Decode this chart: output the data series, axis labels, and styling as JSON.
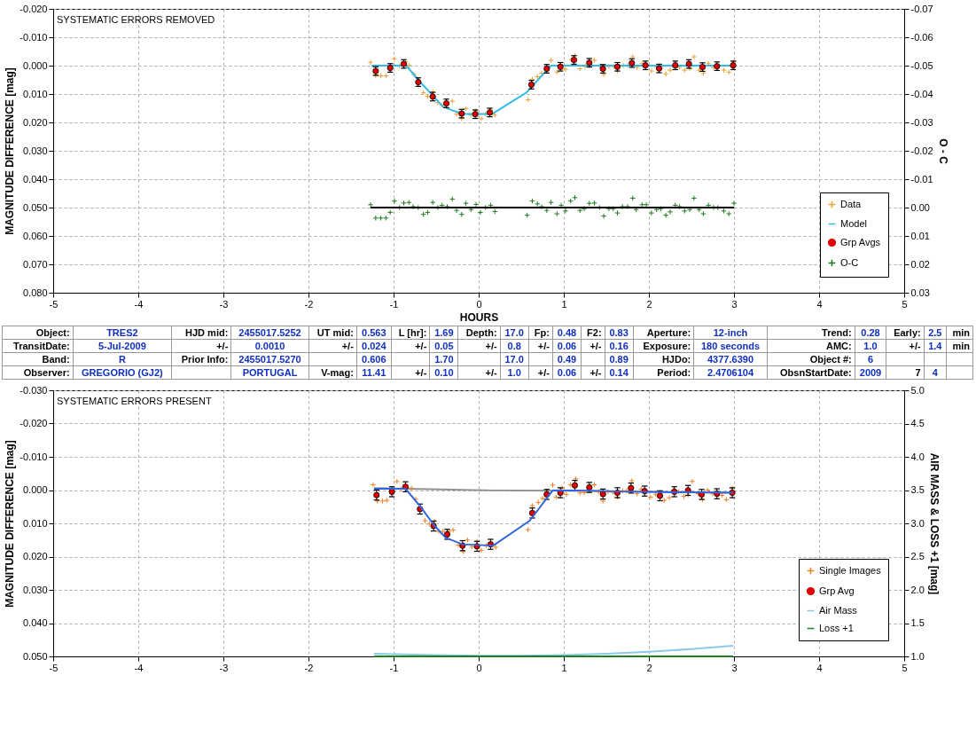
{
  "chart_data": [
    {
      "type": "scatter",
      "title": "SYSTEMATIC ERRORS REMOVED",
      "xlabel": "HOURS",
      "ylabel": "MAGNITUDE DIFFERENCE [mag]",
      "y2label": "O - C",
      "xlim": [
        -5,
        5
      ],
      "xticks": [
        -5,
        -4,
        -3,
        -2,
        -1,
        0,
        1,
        2,
        3,
        4,
        5
      ],
      "ylim": [
        0.08,
        -0.02
      ],
      "yticks": [
        {
          "value": -0.02,
          "label": "-0.020"
        },
        {
          "value": -0.01,
          "label": "-0.010"
        },
        {
          "value": 0,
          "label": "0.000"
        },
        {
          "value": 0.01,
          "label": "0.010"
        },
        {
          "value": 0.02,
          "label": "0.020"
        },
        {
          "value": 0.03,
          "label": "0.030"
        },
        {
          "value": 0.04,
          "label": "0.040"
        },
        {
          "value": 0.05,
          "label": "0.050"
        },
        {
          "value": 0.06,
          "label": "0.060"
        },
        {
          "value": 0.07,
          "label": "0.070"
        },
        {
          "value": 0.08,
          "label": "0.080"
        }
      ],
      "y2lim": [
        0.03,
        -0.07
      ],
      "y2ticks": [
        {
          "value": -0.07,
          "label": "-0.07"
        },
        {
          "value": -0.06,
          "label": "-0.06"
        },
        {
          "value": -0.05,
          "label": "-0.05"
        },
        {
          "value": -0.04,
          "label": "-0.04"
        },
        {
          "value": -0.03,
          "label": "-0.03"
        },
        {
          "value": -0.02,
          "label": "-0.02"
        },
        {
          "value": -0.01,
          "label": "-0.01"
        },
        {
          "value": 0,
          "label": "0.00"
        },
        {
          "value": 0.01,
          "label": "0.01"
        },
        {
          "value": 0.02,
          "label": "0.02"
        },
        {
          "value": 0.03,
          "label": "0.03"
        }
      ],
      "grid": true,
      "legend": "bottom right",
      "series": [
        {
          "name": "Data",
          "type": "scatter",
          "marker": "cross",
          "color": "#f0a030",
          "x": [
            -1.27,
            -1.21,
            -1.15,
            -1.09,
            -0.99,
            -0.93,
            -0.86,
            -0.82,
            -0.76,
            -0.65,
            -0.6,
            -0.54,
            -0.48,
            -0.43,
            -0.37,
            -0.31,
            -0.26,
            -0.2,
            -0.15,
            -0.09,
            -0.03,
            0.03,
            0.08,
            0.14,
            0.19,
            0.58,
            0.63,
            0.69,
            0.74,
            0.85,
            0.92,
            0.98,
            1.02,
            1.09,
            1.13,
            1.19,
            1.25,
            1.36,
            1.42,
            1.47,
            1.53,
            1.59,
            1.63,
            1.7,
            1.75,
            1.81,
            1.86,
            1.92,
            2.03,
            2.09,
            2.14,
            2.2,
            2.25,
            2.36,
            2.42,
            2.48,
            2.53,
            2.59,
            2.64,
            2.7,
            2.76,
            2.81,
            2.88,
            2.94,
            3.0
          ],
          "values": [
            -0.0012,
            0.0036,
            0.0036,
            0.0036,
            -0.0024,
            0.0001,
            -0.0014,
            -0.0001,
            0.0031,
            0.0095,
            0.0108,
            0.0092,
            0.013,
            0.0139,
            0.0135,
            0.0125,
            0.0171,
            0.0187,
            0.0151,
            0.0174,
            0.0159,
            0.0187,
            0.0171,
            0.0157,
            0.0174,
            0.012,
            0.0048,
            0.0039,
            0.0027,
            -0.0019,
            0.0023,
            0.0009,
            0.0013,
            -0.0021,
            -0.0036,
            0.0011,
            0.0003,
            -0.0019,
            0.0001,
            0.0031,
            0.0003,
            0.0003,
            0.0019,
            -0.0001,
            -0.0001,
            -0.0031,
            0.0006,
            -0.0007,
            0.0019,
            0.0006,
            0.0009,
            0.0029,
            0.0016,
            0.0006,
            0.0016,
            0.0011,
            -0.0031,
            0.0016,
            0.0026,
            -0.0007,
            0.0006,
            0.0006,
            0.0016,
            0.0023,
            -0.0014
          ]
        },
        {
          "name": "Model",
          "type": "line",
          "color": "#33bbe8",
          "x": [
            -1.26,
            -0.85,
            -0.71,
            -0.54,
            -0.42,
            -0.27,
            -0.17,
            0.16,
            0.56,
            0.85,
            3.0
          ],
          "values": [
            0,
            0,
            0.005,
            0.0105,
            0.0145,
            0.0162,
            0.017,
            0.017,
            0.0095,
            0,
            0
          ]
        },
        {
          "name": "Grp Avgs",
          "type": "scatter",
          "marker": "circle",
          "color": "#e00000",
          "x": [
            -1.21,
            -1.04,
            -0.88,
            -0.71,
            -0.54,
            -0.38,
            -0.2,
            -0.04,
            0.13,
            0.62,
            0.8,
            0.96,
            1.12,
            1.3,
            1.46,
            1.63,
            1.8,
            1.96,
            2.12,
            2.31,
            2.47,
            2.63,
            2.8,
            2.99
          ],
          "values": [
            0.0019,
            0.0008,
            -0.0006,
            0.0058,
            0.0109,
            0.0133,
            0.0169,
            0.0171,
            0.0165,
            0.0067,
            0.0011,
            0.0004,
            -0.002,
            -0.001,
            0.0011,
            0.0004,
            -0.0009,
            -0.0001,
            0.001,
            -0.0001,
            -0.0006,
            0.0005,
            0.0002,
            -0.0001
          ],
          "errors": [
            0.0015,
            0.0015,
            0.0015,
            0.0015,
            0.0015,
            0.0015,
            0.0015,
            0.0015,
            0.0015,
            0.0015,
            0.0015,
            0.0015,
            0.0015,
            0.0015,
            0.0015,
            0.0015,
            0.0015,
            0.0015,
            0.0015,
            0.0015,
            0.0015,
            0.0015,
            0.0015,
            0.0015
          ]
        },
        {
          "name": "O-C",
          "type": "scatter",
          "marker": "cross",
          "color": "#207a20",
          "axis": "y2",
          "x": [
            -1.27,
            -1.21,
            -1.15,
            -1.09,
            -1.04,
            -0.99,
            -0.93,
            -0.88,
            -0.82,
            -0.77,
            -0.71,
            -0.65,
            -0.6,
            -0.54,
            -0.48,
            -0.43,
            -0.37,
            -0.31,
            -0.26,
            -0.2,
            -0.15,
            -0.09,
            -0.03,
            0.02,
            0.08,
            0.14,
            0.19,
            0.57,
            0.63,
            0.69,
            0.74,
            0.8,
            0.85,
            0.92,
            0.97,
            1.02,
            1.08,
            1.13,
            1.19,
            1.24,
            1.3,
            1.36,
            1.42,
            1.47,
            1.53,
            1.58,
            1.63,
            1.69,
            1.75,
            1.81,
            1.85,
            1.92,
            1.97,
            2.03,
            2.09,
            2.14,
            2.2,
            2.25,
            2.31,
            2.36,
            2.42,
            2.48,
            2.53,
            2.59,
            2.64,
            2.7,
            2.76,
            2.81,
            2.88,
            2.94,
            3.0
          ],
          "values": [
            -0.001,
            0.0037,
            0.0037,
            0.0037,
            0.0017,
            -0.0023,
            0,
            -0.0016,
            -0.0018,
            -0.0003,
            0,
            0.0024,
            0.0017,
            -0.0018,
            0,
            -0.0008,
            -0.0003,
            -0.003,
            0.001,
            0.0024,
            -0.0015,
            0.0007,
            -0.0011,
            0.0017,
            0,
            -0.0008,
            0.0014,
            0.0027,
            -0.0023,
            -0.0013,
            -0.0003,
            0.001,
            -0.0018,
            0.0022,
            -0.0008,
            0.0012,
            -0.0023,
            -0.0035,
            0.001,
            0.0004,
            -0.0015,
            -0.0016,
            0,
            0.003,
            0.0004,
            0.0004,
            0.0019,
            -0.0003,
            -0.0003,
            -0.0033,
            0.0007,
            -0.001,
            -0.001,
            0.0019,
            0.0007,
            0.0004,
            0.0027,
            0.0015,
            -0.0008,
            -0.0003,
            0.0012,
            0.0007,
            -0.0033,
            0.0007,
            0.0022,
            -0.0008,
            0,
            0,
            0.0012,
            0.0022,
            -0.0015
          ]
        },
        {
          "type": "line",
          "color": "#000000",
          "axis": "y2",
          "x": [
            -1.27,
            3.0
          ],
          "values": [
            0,
            0
          ]
        }
      ]
    },
    {
      "type": "other",
      "cell_labels": [
        [
          "Object:",
          "TRES2",
          "HJD mid:",
          "2455017.5252",
          "UT mid:",
          "0.563",
          "L [hr]:",
          "1.69",
          "Depth:",
          "17.0",
          "Fp:",
          "0.48",
          "F2:",
          "0.83",
          "Aperture:",
          "12-inch",
          "Trend:",
          "0.28",
          "Early:",
          "2.5",
          "min"
        ],
        [
          "TransitDate:",
          "5-Jul-2009",
          "+/-",
          "0.0010",
          "+/-",
          "0.024",
          "+/-",
          "0.05",
          "+/-",
          "0.8",
          "+/-",
          "0.06",
          "+/-",
          "0.16",
          "Exposure:",
          "180 seconds",
          "AMC:",
          "1.0",
          "+/-",
          "1.4",
          "min"
        ],
        [
          "Band:",
          "R",
          "Prior Info:",
          "2455017.5270",
          null,
          "0.606",
          null,
          "1.70",
          null,
          "17.0",
          null,
          "0.49",
          null,
          "0.89",
          "HJDo:",
          "4377.6390",
          "Object #:",
          "6",
          null,
          null,
          null
        ],
        [
          "Observer:",
          "GREGORIO (GJ2)",
          null,
          "PORTUGAL",
          "V-mag:",
          "11.41",
          "+/-",
          "0.10",
          "+/-",
          "1.0",
          "+/-",
          "0.06",
          "+/-",
          "0.14",
          "Period:",
          "2.4706104",
          "ObsnStartDate:",
          "2009",
          "7",
          "4",
          null
        ]
      ]
    },
    {
      "type": "scatter",
      "title": "SYSTEMATIC ERRORS PRESENT",
      "ylabel": "MAGNITUDE DIFFERENCE [mag]",
      "y2label": "AIR MASS & LOSS +1 [mag]",
      "xlim": [
        -5,
        5
      ],
      "xticks": [
        -5,
        -4,
        -3,
        -2,
        -1,
        0,
        1,
        2,
        3,
        4,
        5
      ],
      "ylim": [
        0.05,
        -0.03
      ],
      "yticks": [
        {
          "value": -0.03,
          "label": "-0.030"
        },
        {
          "value": -0.02,
          "label": "-0.020"
        },
        {
          "value": -0.01,
          "label": "-0.010"
        },
        {
          "value": 0,
          "label": "0.000"
        },
        {
          "value": 0.01,
          "label": "0.010"
        },
        {
          "value": 0.02,
          "label": "0.020"
        },
        {
          "value": 0.03,
          "label": "0.030"
        },
        {
          "value": 0.04,
          "label": "0.040"
        },
        {
          "value": 0.05,
          "label": "0.050"
        }
      ],
      "y2lim": [
        1,
        5
      ],
      "y2ticks": [
        {
          "value": 1,
          "label": "1.0"
        },
        {
          "value": 1.5,
          "label": "1.5"
        },
        {
          "value": 2,
          "label": "2.0"
        },
        {
          "value": 2.5,
          "label": "2.5"
        },
        {
          "value": 3,
          "label": "3.0"
        },
        {
          "value": 3.5,
          "label": "3.5"
        },
        {
          "value": 4,
          "label": "4.0"
        },
        {
          "value": 4.5,
          "label": "4.5"
        },
        {
          "value": 5,
          "label": "5.0"
        }
      ],
      "grid": true,
      "legend": "bottom right",
      "series": [
        {
          "type": "line",
          "color": "#909090",
          "x": [
            -1.23,
            0.17,
            1.0,
            2.99
          ],
          "values": [
            -0.0006,
            0.0001,
            0.0002,
            0.0008
          ]
        },
        {
          "name": "Single Images",
          "type": "scatter",
          "marker": "cross",
          "color": "#f08020",
          "x": [
            -1.24,
            -1.19,
            -1.13,
            -1.08,
            -0.96,
            -0.91,
            -0.79,
            -0.74,
            -0.63,
            -0.58,
            -0.52,
            -0.47,
            -0.42,
            -0.35,
            -0.3,
            -0.24,
            -0.18,
            -0.13,
            -0.08,
            -0.02,
            0.03,
            0.09,
            0.2,
            0.58,
            0.63,
            0.7,
            0.75,
            0.87,
            0.91,
            0.98,
            1.03,
            1.08,
            1.14,
            1.19,
            1.24,
            1.36,
            1.41,
            1.46,
            1.52,
            1.58,
            1.63,
            1.69,
            1.74,
            1.8,
            1.86,
            1.91,
            1.97,
            2.02,
            2.08,
            2.18,
            2.24,
            2.29,
            2.35,
            2.41,
            2.46,
            2.51,
            2.58,
            2.63,
            2.69,
            2.75,
            2.8,
            2.86,
            2.91,
            2.98
          ],
          "values": [
            -0.0016,
            0.0033,
            0.0033,
            0.0031,
            -0.0026,
            -0.0003,
            -0.0006,
            0.0027,
            0.0092,
            0.0102,
            0.0094,
            0.0124,
            0.0124,
            0.0124,
            0.012,
            0.0165,
            0.0185,
            0.015,
            0.0171,
            0.0154,
            0.0181,
            0.0167,
            0.0172,
            0.0119,
            0.0047,
            0.0037,
            0.0025,
            -0.0015,
            0.0021,
            -0.0006,
            0.0013,
            -0.0016,
            -0.0034,
            0.0009,
            0.0008,
            -0.0016,
            0.0005,
            0.0033,
            0.0005,
            0.0007,
            0.0021,
            0.0002,
            0.0002,
            -0.0028,
            0.0011,
            -0.0003,
            0.0005,
            0.0021,
            0.0013,
            0.0031,
            0.0023,
            0,
            0.0005,
            0.0019,
            0.0015,
            -0.0026,
            0.0011,
            0.0029,
            0,
            0.0011,
            0.0008,
            0.0016,
            0.0029,
            -0.0006
          ]
        },
        {
          "name": "Grp Avg",
          "type": "scatter",
          "marker": "circle",
          "color": "#e00000",
          "x": [
            -1.2,
            -1.02,
            -0.86,
            -0.69,
            -0.53,
            -0.37,
            -0.19,
            -0.02,
            0.14,
            0.63,
            0.8,
            0.96,
            1.13,
            1.3,
            1.46,
            1.63,
            1.79,
            1.95,
            2.13,
            2.3,
            2.46,
            2.62,
            2.8,
            2.98
          ],
          "values": [
            0.0015,
            0.0005,
            -0.001,
            0.0057,
            0.0108,
            0.0133,
            0.0167,
            0.0169,
            0.0163,
            0.0069,
            0.0013,
            0.0008,
            -0.0014,
            -0.0008,
            0.0012,
            0.0008,
            -0.0006,
            0.0003,
            0.0017,
            0.0005,
            0.0001,
            0.0013,
            0.0011,
            0.0008
          ],
          "errors": [
            0.0015,
            0.0015,
            0.0015,
            0.0015,
            0.0015,
            0.0015,
            0.0015,
            0.0015,
            0.0015,
            0.0015,
            0.0015,
            0.0015,
            0.0015,
            0.0015,
            0.0015,
            0.0015,
            0.0015,
            0.0015,
            0.0015,
            0.0015,
            0.0015,
            0.0015,
            0.0015,
            0.0015
          ]
        },
        {
          "type": "line",
          "color": "#3366dd",
          "x": [
            -1.23,
            -0.86,
            -0.68,
            -0.53,
            -0.39,
            -0.19,
            0.17,
            0.6,
            0.87,
            1.18,
            1.8,
            2.99
          ],
          "values": [
            -0.0004,
            -0.0004,
            0.0051,
            0.0104,
            0.0143,
            0.0163,
            0.0167,
            0.0092,
            0.0001,
            0.0001,
            0.0005,
            0.0008
          ]
        },
        {
          "name": "Air Mass",
          "type": "line",
          "color": "#8cc8e8",
          "axis": "y2",
          "x": [
            -1.23,
            -0.5,
            0,
            0.5,
            1.0,
            1.5,
            2.0,
            2.5,
            2.99
          ],
          "values": [
            1.04,
            1.02,
            1.01,
            1.01,
            1.02,
            1.04,
            1.07,
            1.11,
            1.16
          ]
        },
        {
          "name": "Loss +1",
          "type": "line",
          "color": "#208020",
          "axis": "y2",
          "x": [
            -1.23,
            2.99
          ],
          "values": [
            1,
            1
          ]
        }
      ]
    }
  ]
}
